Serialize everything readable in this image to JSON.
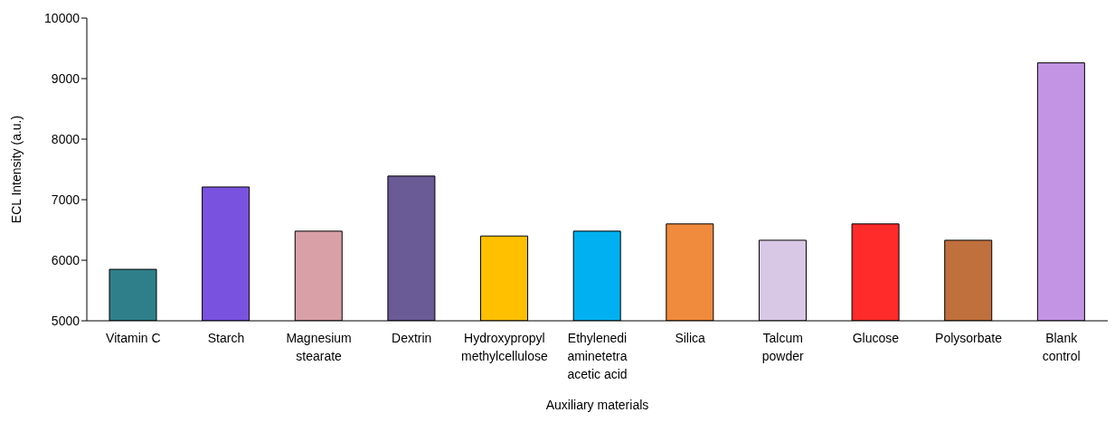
{
  "chart_data": {
    "type": "bar",
    "xlabel": "Auxiliary materials",
    "ylabel": "ECL Intensity (a.u.)",
    "categories": [
      "Vitamin C",
      "Starch",
      "Magnesium\nstearate",
      "Dextrin",
      "Hydroxypropyl\nmethylcellulose",
      "Ethylenedi\naminetetra\nacetic acid",
      "Silica",
      "Talcum\npowder",
      "Glucose",
      "Polysorbate",
      "Blank\ncontrol"
    ],
    "values": [
      5850,
      7210,
      6480,
      7390,
      6400,
      6480,
      6600,
      6330,
      6600,
      6330,
      9260
    ],
    "colors": [
      "#2f7f8a",
      "#7a52e0",
      "#d9a0a8",
      "#6a5a96",
      "#ffc000",
      "#00b0f0",
      "#f08a3c",
      "#d8c8e6",
      "#ff2a2a",
      "#c0703c",
      "#c494e4"
    ],
    "ylim": [
      5000,
      10000
    ],
    "yticks": [
      5000,
      6000,
      7000,
      8000,
      9000,
      10000
    ],
    "grid": false,
    "legend": false
  }
}
